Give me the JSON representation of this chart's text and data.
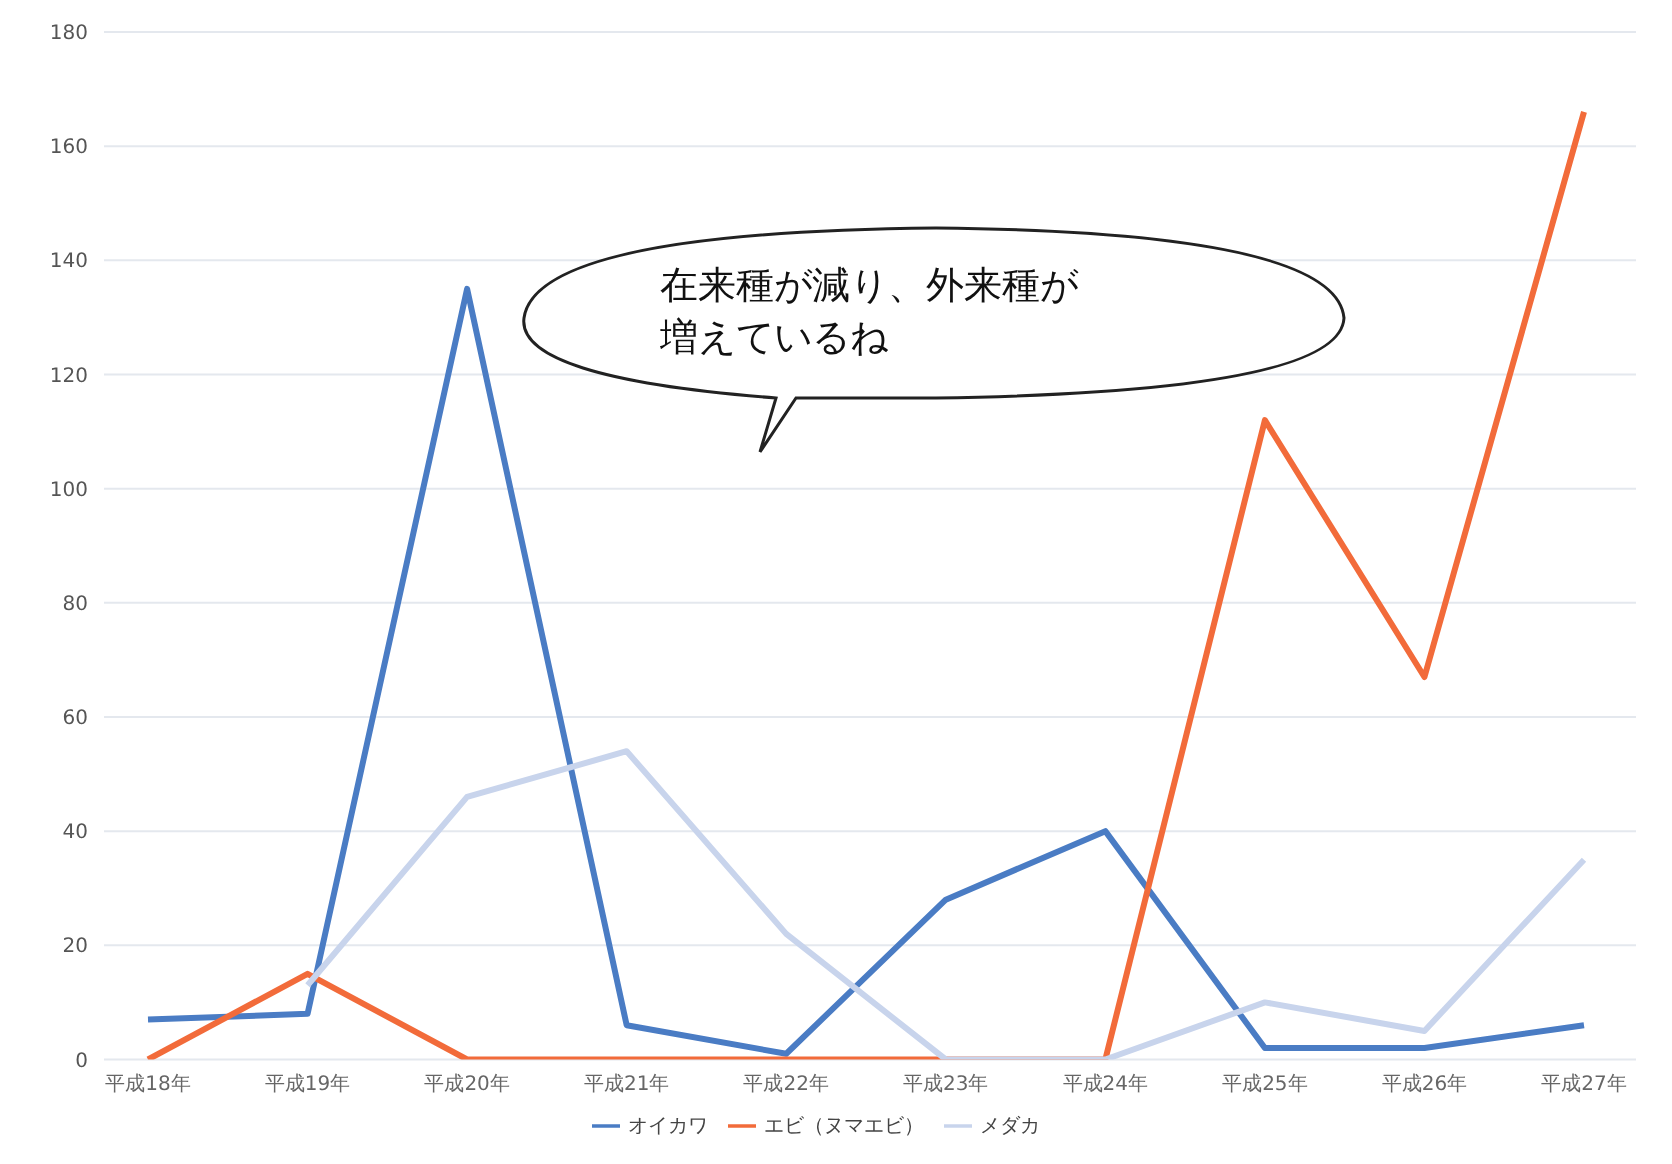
{
  "chart_data": {
    "type": "line",
    "categories": [
      "平成18年",
      "平成19年",
      "平成20年",
      "平成21年",
      "平成22年",
      "平成23年",
      "平成24年",
      "平成25年",
      "平成26年",
      "平成27年"
    ],
    "series": [
      {
        "name": "オイカワ",
        "color": "#4a7cc4",
        "values": [
          7,
          8,
          135,
          6,
          1,
          28,
          40,
          2,
          2,
          6
        ]
      },
      {
        "name": "エビ（ヌマエビ）",
        "color": "#f26b3a",
        "values": [
          0,
          15,
          0,
          0,
          0,
          0,
          0,
          112,
          67,
          166
        ]
      },
      {
        "name": "メダカ",
        "color": "#c8d4ec",
        "values": [
          null,
          13,
          46,
          54,
          22,
          0,
          0,
          10,
          5,
          35
        ]
      }
    ],
    "ylim": [
      0,
      180
    ],
    "yticks": [
      0,
      20,
      40,
      60,
      80,
      100,
      120,
      140,
      160,
      180
    ],
    "grid": "y",
    "legend": "bottom",
    "marker": "none",
    "line_style": "solid",
    "annotations": [
      "在来種が減り、外来種が増えているね"
    ]
  }
}
